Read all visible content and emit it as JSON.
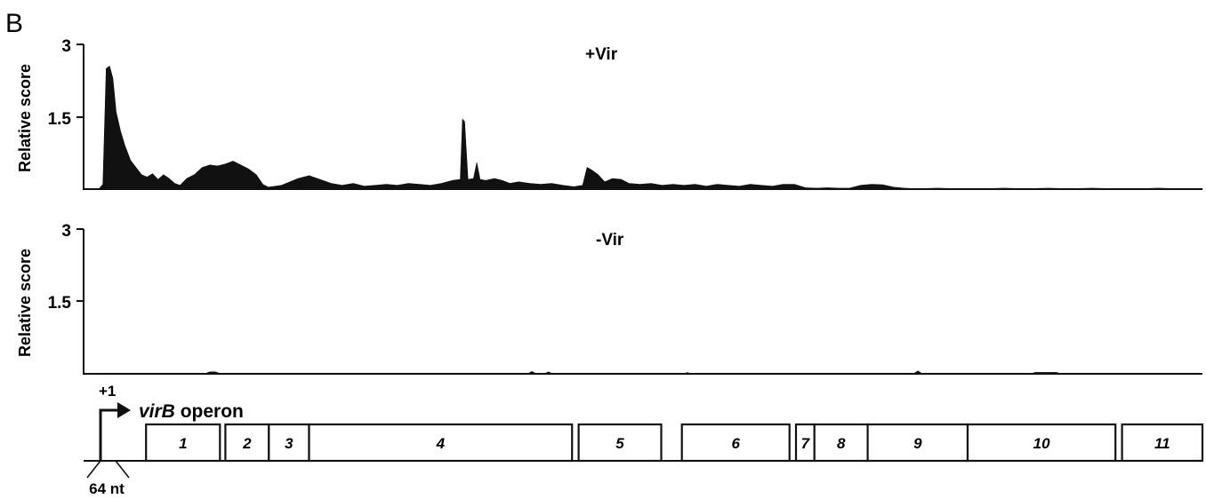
{
  "panel_label": "B",
  "chart_data": [
    {
      "type": "area",
      "title": "+Vir",
      "ylabel": "Relative score",
      "yticks": [
        "3",
        "1.5"
      ],
      "ylim": [
        0,
        3
      ],
      "xlim": [
        0,
        100
      ],
      "profile": [
        [
          0,
          0.02
        ],
        [
          0.3,
          0.1
        ],
        [
          0.6,
          2.5
        ],
        [
          0.9,
          2.55
        ],
        [
          1.2,
          2.3
        ],
        [
          1.5,
          1.6
        ],
        [
          1.9,
          1.2
        ],
        [
          2.3,
          0.9
        ],
        [
          2.8,
          0.6
        ],
        [
          3.3,
          0.45
        ],
        [
          3.8,
          0.3
        ],
        [
          4.3,
          0.25
        ],
        [
          4.8,
          0.32
        ],
        [
          5.3,
          0.2
        ],
        [
          5.8,
          0.3
        ],
        [
          6.3,
          0.22
        ],
        [
          6.8,
          0.12
        ],
        [
          7.3,
          0.08
        ],
        [
          7.9,
          0.22
        ],
        [
          8.6,
          0.3
        ],
        [
          9.3,
          0.45
        ],
        [
          10,
          0.5
        ],
        [
          10.7,
          0.48
        ],
        [
          11.4,
          0.52
        ],
        [
          12.1,
          0.58
        ],
        [
          12.8,
          0.5
        ],
        [
          13.5,
          0.42
        ],
        [
          14.2,
          0.3
        ],
        [
          14.8,
          0.1
        ],
        [
          15.3,
          0.04
        ],
        [
          16.5,
          0.08
        ],
        [
          18,
          0.22
        ],
        [
          19,
          0.28
        ],
        [
          20,
          0.2
        ],
        [
          21,
          0.12
        ],
        [
          22,
          0.08
        ],
        [
          23,
          0.12
        ],
        [
          24,
          0.06
        ],
        [
          25,
          0.08
        ],
        [
          26,
          0.1
        ],
        [
          27,
          0.08
        ],
        [
          28,
          0.12
        ],
        [
          29,
          0.1
        ],
        [
          30,
          0.08
        ],
        [
          31,
          0.12
        ],
        [
          32,
          0.18
        ],
        [
          32.7,
          0.2
        ],
        [
          32.9,
          1.45
        ],
        [
          33.1,
          1.4
        ],
        [
          33.4,
          0.2
        ],
        [
          33.9,
          0.22
        ],
        [
          34.2,
          0.55
        ],
        [
          34.5,
          0.2
        ],
        [
          35,
          0.18
        ],
        [
          35.8,
          0.22
        ],
        [
          36.5,
          0.18
        ],
        [
          37.2,
          0.12
        ],
        [
          38,
          0.15
        ],
        [
          39,
          0.12
        ],
        [
          40,
          0.1
        ],
        [
          41,
          0.12
        ],
        [
          42,
          0.08
        ],
        [
          43,
          0.05
        ],
        [
          43.8,
          0.08
        ],
        [
          44.2,
          0.45
        ],
        [
          44.6,
          0.4
        ],
        [
          45.2,
          0.3
        ],
        [
          45.8,
          0.15
        ],
        [
          46.5,
          0.22
        ],
        [
          47.3,
          0.2
        ],
        [
          48,
          0.12
        ],
        [
          49,
          0.1
        ],
        [
          50,
          0.12
        ],
        [
          51,
          0.08
        ],
        [
          52,
          0.1
        ],
        [
          53,
          0.08
        ],
        [
          54,
          0.1
        ],
        [
          55,
          0.06
        ],
        [
          56,
          0.1
        ],
        [
          57,
          0.08
        ],
        [
          58,
          0.06
        ],
        [
          59,
          0.1
        ],
        [
          60,
          0.08
        ],
        [
          61,
          0.06
        ],
        [
          62,
          0.1
        ],
        [
          63,
          0.1
        ],
        [
          64,
          0.03
        ],
        [
          65,
          0.02
        ],
        [
          66,
          0.03
        ],
        [
          67,
          0.02
        ],
        [
          68,
          0.02
        ],
        [
          69,
          0.08
        ],
        [
          70,
          0.1
        ],
        [
          71,
          0.09
        ],
        [
          72,
          0.04
        ],
        [
          73,
          0.02
        ],
        [
          74,
          0.01
        ],
        [
          76,
          0.02
        ],
        [
          78,
          0.01
        ],
        [
          80,
          0.01
        ],
        [
          82,
          0.02
        ],
        [
          84,
          0.01
        ],
        [
          86,
          0.02
        ],
        [
          88,
          0.01
        ],
        [
          90,
          0.02
        ],
        [
          92,
          0.01
        ],
        [
          94,
          0.01
        ],
        [
          96,
          0.02
        ],
        [
          98,
          0.01
        ],
        [
          100,
          0.01
        ]
      ]
    },
    {
      "type": "area",
      "title": "-Vir",
      "ylabel": "Relative score",
      "yticks": [
        "3",
        "1.5"
      ],
      "ylim": [
        0,
        3
      ],
      "xlim": [
        0,
        100
      ],
      "profile": [
        [
          0,
          0
        ],
        [
          9.5,
          0
        ],
        [
          10,
          0.04
        ],
        [
          10.5,
          0.04
        ],
        [
          11,
          0
        ],
        [
          38.8,
          0
        ],
        [
          39.2,
          0.05
        ],
        [
          39.6,
          0
        ],
        [
          40.3,
          0
        ],
        [
          40.7,
          0.04
        ],
        [
          41.1,
          0
        ],
        [
          53,
          0
        ],
        [
          53.3,
          0.03
        ],
        [
          53.6,
          0
        ],
        [
          73.8,
          0
        ],
        [
          74.2,
          0.06
        ],
        [
          74.6,
          0
        ],
        [
          84.5,
          0
        ],
        [
          84.8,
          0.03
        ],
        [
          86.8,
          0.03
        ],
        [
          87.1,
          0
        ],
        [
          100,
          0
        ]
      ]
    }
  ],
  "operon_map": {
    "tss_label": "+1",
    "operon_name_italic": "virB",
    "operon_name_rest": " operon",
    "distance_label": "64 nt",
    "genes": [
      {
        "label": "1",
        "start": 2.8,
        "end": 9.6
      },
      {
        "label": "2",
        "start": 10.1,
        "end": 14.1
      },
      {
        "label": "3",
        "start": 14.1,
        "end": 17.8
      },
      {
        "label": "4",
        "start": 17.8,
        "end": 42.0
      },
      {
        "label": "5",
        "start": 42.6,
        "end": 50.2
      },
      {
        "label": "6",
        "start": 52.1,
        "end": 62.0
      },
      {
        "label": "7",
        "start": 62.6,
        "end": 64.3
      },
      {
        "label": "8",
        "start": 64.3,
        "end": 69.2
      },
      {
        "label": "9",
        "start": 69.2,
        "end": 78.4
      },
      {
        "label": "10",
        "start": 78.4,
        "end": 92.0
      },
      {
        "label": "11",
        "start": 92.6,
        "end": 100.0
      }
    ]
  }
}
